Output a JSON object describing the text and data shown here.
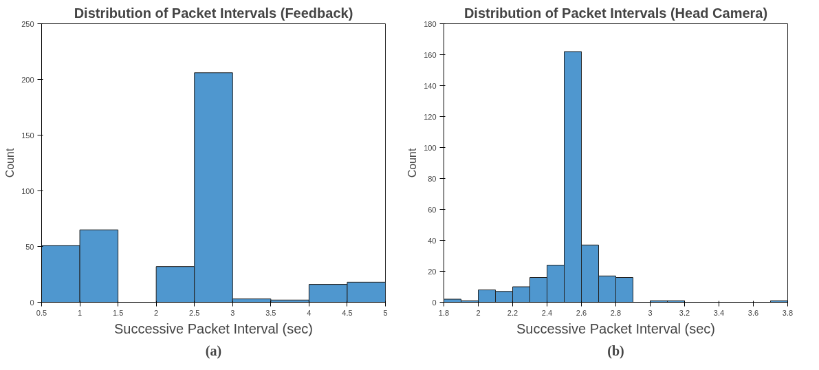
{
  "chart_data": [
    {
      "type": "histogram",
      "title": "Distribution of Packet Intervals (Feedback)",
      "xlabel": "Successive Packet Interval (sec)",
      "ylabel": "Count",
      "annotations": [
        "(a)"
      ],
      "color": "#4f97cf",
      "bins": [
        0.5,
        1,
        1.5,
        2,
        2.5,
        3,
        3.5,
        4,
        4.5,
        5
      ],
      "values": [
        51,
        65,
        0,
        32,
        206,
        3,
        2,
        16,
        18
      ],
      "xlim": [
        0.5,
        5
      ],
      "xticks": [
        0.5,
        1,
        1.5,
        2,
        2.5,
        3,
        3.5,
        4,
        4.5,
        5
      ],
      "ylim": [
        0,
        250
      ],
      "yticks": [
        0,
        50,
        100,
        150,
        200,
        250
      ]
    },
    {
      "type": "histogram",
      "title": "Distribution of Packet Intervals (Head Camera)",
      "xlabel": "Successive Packet Interval (sec)",
      "ylabel": "Count",
      "annotations": [
        "(b)"
      ],
      "color": "#4f97cf",
      "bins": [
        1.8,
        1.9,
        2.0,
        2.1,
        2.2,
        2.3,
        2.4,
        2.5,
        2.6,
        2.7,
        2.8,
        2.9,
        3.0,
        3.1,
        3.2,
        3.3,
        3.4,
        3.5,
        3.6,
        3.7,
        3.8
      ],
      "values": [
        2,
        1,
        8,
        7,
        10,
        16,
        24,
        162,
        37,
        17,
        16,
        0,
        1,
        1,
        0,
        0,
        0,
        0,
        0,
        1
      ],
      "xlim": [
        1.8,
        3.8
      ],
      "xticks": [
        1.8,
        2,
        2.2,
        2.4,
        2.6,
        2.8,
        3,
        3.2,
        3.4,
        3.6,
        3.8
      ],
      "ylim": [
        0,
        180
      ],
      "yticks": [
        0,
        20,
        40,
        60,
        80,
        100,
        120,
        140,
        160,
        180
      ]
    }
  ]
}
